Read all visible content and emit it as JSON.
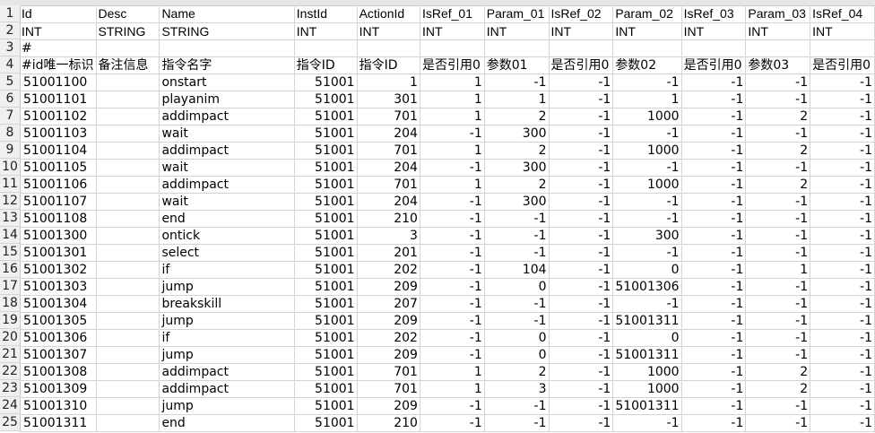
{
  "columns": [
    "Id",
    "Desc",
    "Name",
    "InstId",
    "ActionId",
    "IsRef_01",
    "Param_01",
    "IsRef_02",
    "Param_02",
    "IsRef_03",
    "Param_03",
    "IsRef_04"
  ],
  "types": [
    "INT",
    "STRING",
    "STRING",
    "INT",
    "INT",
    "INT",
    "INT",
    "INT",
    "INT",
    "INT",
    "INT",
    "INT"
  ],
  "comment_row": [
    "#",
    "",
    "",
    "",
    "",
    "",
    "",
    "",
    "",
    "",
    "",
    ""
  ],
  "labels": [
    "#id唯一标识",
    "备注信息",
    "指令名字",
    "指令ID",
    "指令ID",
    "是否引用0",
    "参数01",
    "是否引用0",
    "参数02",
    "是否引用0",
    "参数03",
    "是否引用0"
  ],
  "row_numbers": [
    "1",
    "2",
    "3",
    "4",
    "5",
    "6",
    "7",
    "8",
    "9",
    "10",
    "11",
    "12",
    "13",
    "14",
    "15",
    "16",
    "17",
    "18",
    "19",
    "20",
    "21",
    "22",
    "23",
    "24",
    "25"
  ],
  "rows": [
    [
      "51001100",
      "",
      "onstart",
      "51001",
      "1",
      "1",
      "-1",
      "-1",
      "-1",
      "-1",
      "-1",
      "-1"
    ],
    [
      "51001101",
      "",
      "playanim",
      "51001",
      "301",
      "1",
      "1",
      "-1",
      "1",
      "-1",
      "-1",
      "-1"
    ],
    [
      "51001102",
      "",
      "addimpact",
      "51001",
      "701",
      "1",
      "2",
      "-1",
      "1000",
      "-1",
      "2",
      "-1"
    ],
    [
      "51001103",
      "",
      "wait",
      "51001",
      "204",
      "-1",
      "300",
      "-1",
      "-1",
      "-1",
      "-1",
      "-1"
    ],
    [
      "51001104",
      "",
      "addimpact",
      "51001",
      "701",
      "1",
      "2",
      "-1",
      "1000",
      "-1",
      "2",
      "-1"
    ],
    [
      "51001105",
      "",
      "wait",
      "51001",
      "204",
      "-1",
      "300",
      "-1",
      "-1",
      "-1",
      "-1",
      "-1"
    ],
    [
      "51001106",
      "",
      "addimpact",
      "51001",
      "701",
      "1",
      "2",
      "-1",
      "1000",
      "-1",
      "2",
      "-1"
    ],
    [
      "51001107",
      "",
      "wait",
      "51001",
      "204",
      "-1",
      "300",
      "-1",
      "-1",
      "-1",
      "-1",
      "-1"
    ],
    [
      "51001108",
      "",
      "end",
      "51001",
      "210",
      "-1",
      "-1",
      "-1",
      "-1",
      "-1",
      "-1",
      "-1"
    ],
    [
      "51001300",
      "",
      "ontick",
      "51001",
      "3",
      "-1",
      "-1",
      "-1",
      "300",
      "-1",
      "-1",
      "-1"
    ],
    [
      "51001301",
      "",
      "select",
      "51001",
      "201",
      "-1",
      "-1",
      "-1",
      "-1",
      "-1",
      "-1",
      "-1"
    ],
    [
      "51001302",
      "",
      "if",
      "51001",
      "202",
      "-1",
      "104",
      "-1",
      "0",
      "-1",
      "1",
      "-1"
    ],
    [
      "51001303",
      "",
      "jump",
      "51001",
      "209",
      "-1",
      "0",
      "-1",
      "51001306",
      "-1",
      "-1",
      "-1"
    ],
    [
      "51001304",
      "",
      "breakskill",
      "51001",
      "207",
      "-1",
      "-1",
      "-1",
      "-1",
      "-1",
      "-1",
      "-1"
    ],
    [
      "51001305",
      "",
      "jump",
      "51001",
      "209",
      "-1",
      "-1",
      "-1",
      "51001311",
      "-1",
      "-1",
      "-1"
    ],
    [
      "51001306",
      "",
      "if",
      "51001",
      "202",
      "-1",
      "0",
      "-1",
      "0",
      "-1",
      "-1",
      "-1"
    ],
    [
      "51001307",
      "",
      "jump",
      "51001",
      "209",
      "-1",
      "0",
      "-1",
      "51001311",
      "-1",
      "-1",
      "-1"
    ],
    [
      "51001308",
      "",
      "addimpact",
      "51001",
      "701",
      "1",
      "2",
      "-1",
      "1000",
      "-1",
      "2",
      "-1"
    ],
    [
      "51001309",
      "",
      "addimpact",
      "51001",
      "701",
      "1",
      "3",
      "-1",
      "1000",
      "-1",
      "2",
      "-1"
    ],
    [
      "51001310",
      "",
      "jump",
      "51001",
      "209",
      "-1",
      "-1",
      "-1",
      "51001311",
      "-1",
      "-1",
      "-1"
    ],
    [
      "51001311",
      "",
      "end",
      "51001",
      "210",
      "-1",
      "-1",
      "-1",
      "-1",
      "-1",
      "-1",
      "-1"
    ]
  ]
}
